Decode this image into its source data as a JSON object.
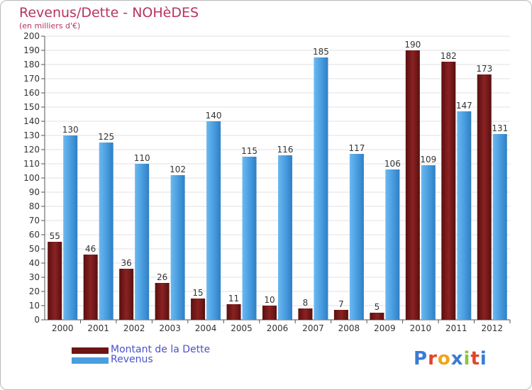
{
  "header": {
    "title": "Revenus/Dette - NOHèDES",
    "subtitle": "(en milliers d'€)"
  },
  "legend": {
    "items": [
      {
        "label": "Montant de la Dette",
        "color": "#6e1414"
      },
      {
        "label": "Revenus",
        "color": "#4a9ee0"
      }
    ]
  },
  "logo": {
    "text": "Proxiti",
    "letter_colors": [
      "#3a7bd5",
      "#e0452b",
      "#f0a51a",
      "#3a7bd5",
      "#8bc540",
      "#e0452b",
      "#3a7bd5"
    ]
  },
  "chart_data": {
    "type": "bar",
    "categories": [
      "2000",
      "2001",
      "2002",
      "2003",
      "2004",
      "2005",
      "2006",
      "2007",
      "2008",
      "2009",
      "2010",
      "2011",
      "2012"
    ],
    "series": [
      {
        "name": "Montant de la Dette",
        "color": "#6e1414",
        "values": [
          55,
          46,
          36,
          26,
          15,
          11,
          10,
          8,
          7,
          5,
          190,
          182,
          173
        ]
      },
      {
        "name": "Revenus",
        "color": "#4a9ee0",
        "values": [
          130,
          125,
          110,
          102,
          140,
          115,
          116,
          185,
          117,
          106,
          109,
          147,
          131
        ]
      }
    ],
    "ylim": [
      0,
      200
    ],
    "ytick_step": 10,
    "grid": true,
    "legend_position": "bottom-left"
  }
}
